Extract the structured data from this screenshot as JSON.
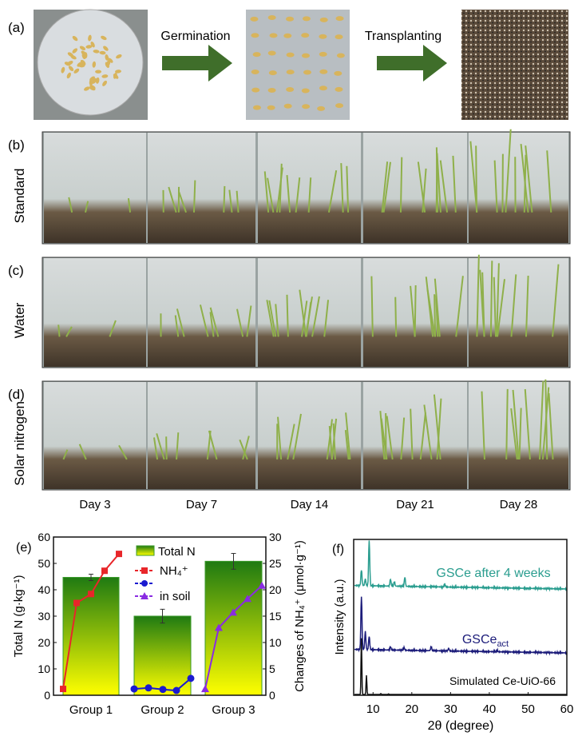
{
  "panel_a": {
    "label": "(a)",
    "step1": "Germination",
    "step2": "Transplanting"
  },
  "rows": [
    {
      "label": "(b)",
      "name": "Standard"
    },
    {
      "label": "(c)",
      "name": "Water"
    },
    {
      "label": "(d)",
      "name": "Solar nitrogen"
    }
  ],
  "days": [
    "Day 3",
    "Day 7",
    "Day 14",
    "Day 21",
    "Day 28"
  ],
  "chart_data": [
    {
      "type": "bar",
      "label": "(e)",
      "categories": [
        "Group 1",
        "Group 2",
        "Group 3"
      ],
      "values": [
        44.7,
        30.0,
        50.8
      ],
      "errors": [
        1.2,
        2.6,
        3.0
      ],
      "bar_series": "Total N",
      "ylabel": "Total N (g·kg⁻¹)",
      "ylim": [
        0,
        60
      ],
      "yticks": [
        0,
        10,
        20,
        30,
        40,
        50,
        60
      ],
      "y2label": "Changes of NH₄⁺ (μmol·g⁻¹)",
      "y2lim": [
        0,
        30
      ],
      "y2ticks": [
        0,
        5,
        10,
        15,
        20,
        25,
        30
      ],
      "legend": [
        "Total N",
        "NH₄⁺",
        "in soil"
      ],
      "line_series": [
        {
          "group": "Group 1",
          "color": "#e8262a",
          "marker": "square",
          "values": [
            1.2,
            17.5,
            19.2,
            23.6,
            26.8
          ]
        },
        {
          "group": "Group 2",
          "color": "#1a1ad0",
          "marker": "circle",
          "values": [
            1.2,
            1.4,
            1.1,
            0.9,
            3.2
          ]
        },
        {
          "group": "Group 3",
          "color": "#8a2be2",
          "marker": "triangle",
          "values": [
            1.2,
            12.8,
            15.7,
            18.3,
            20.8
          ]
        }
      ],
      "colors": {
        "bar_top": "#1f7a12",
        "bar_bottom": "#ffff00"
      }
    },
    {
      "type": "line",
      "label": "(f)",
      "xlabel": "2θ (degree)",
      "ylabel": "Intensity (a.u.)",
      "xlim": [
        5,
        60
      ],
      "xticks": [
        10,
        20,
        30,
        40,
        50,
        60
      ],
      "series": [
        {
          "name": "GSCe after 4 weeks",
          "color": "#2a9d8f",
          "peaks": [
            [
              7,
              0.35
            ],
            [
              8,
              0.15
            ],
            [
              9,
              1.0
            ],
            [
              14.5,
              0.15
            ],
            [
              15.5,
              0.1
            ],
            [
              18.2,
              0.2
            ],
            [
              28.5,
              0.06
            ]
          ]
        },
        {
          "name": "GSCe",
          "subscript": "act",
          "color": "#1c1c7a",
          "peaks": [
            [
              7,
              1.6
            ],
            [
              8,
              0.55
            ],
            [
              9,
              0.4
            ],
            [
              14.5,
              0.1
            ],
            [
              18,
              0.08
            ],
            [
              25,
              0.12
            ],
            [
              29.5,
              0.08
            ],
            [
              42,
              0.05
            ]
          ]
        },
        {
          "name": "Simulated Ce-UiO-66",
          "color": "#111111",
          "peaks": [
            [
              7,
              1.9
            ],
            [
              8.3,
              0.65
            ],
            [
              12,
              0.03
            ],
            [
              14,
              0.02
            ]
          ]
        }
      ]
    }
  ]
}
